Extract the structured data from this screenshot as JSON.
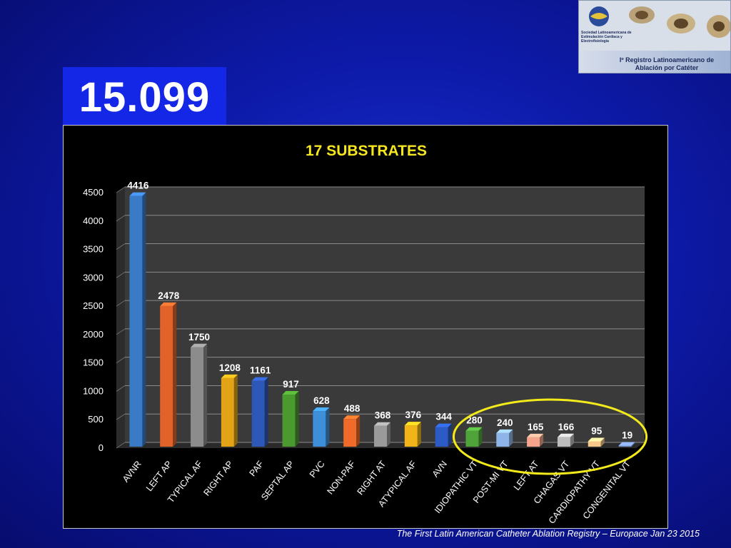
{
  "headline": {
    "total": "15.099"
  },
  "logo": {
    "org": "Sociedad Latinoamericana de Estimulación Cardíaca y Electrofisiología",
    "registry": "Iº Registro Latinoamericano de Ablación por Catéter"
  },
  "footer": {
    "citation": "The First Latin American Catheter Ablation Registry – Europace Jan 23 2015"
  },
  "colors": {
    "background": "#0d1aa8",
    "title": "#f5e61e",
    "highlight_ellipse": "#f2ea1a"
  },
  "chart_data": {
    "type": "bar",
    "title": "17 SUBSTRATES",
    "xlabel": "",
    "ylabel": "",
    "ylim": [
      0,
      4500
    ],
    "yticks": [
      0,
      500,
      1000,
      1500,
      2000,
      2500,
      3000,
      3500,
      4000,
      4500
    ],
    "grid": true,
    "categories": [
      "AVNR",
      "LEFT AP",
      "TYPICAL AF",
      "RIGHT AP",
      "PAF",
      "SEPTAL AP",
      "PVC",
      "NON-PAF",
      "RIGHT AT",
      "ATYPICAL AF",
      "AVN",
      "IDIOPATHIC VT",
      "POST-MI VT",
      "LEFT AT",
      "CHAGAS VT",
      "CARDIOPATHY VT",
      "CONGENITAL VT"
    ],
    "values": [
      4416,
      2478,
      1750,
      1208,
      1161,
      917,
      628,
      488,
      368,
      376,
      344,
      280,
      240,
      165,
      166,
      95,
      19
    ],
    "bar_colors": [
      "#3a7bc8",
      "#e2632a",
      "#8c8c8c",
      "#e3a317",
      "#2e58b8",
      "#4b9a2f",
      "#3c8fd8",
      "#f06a2a",
      "#9a9a9a",
      "#f1b51a",
      "#2c5bc5",
      "#4fa33a",
      "#8eb4e8",
      "#f4a58c",
      "#bdbdbd",
      "#f6c88a",
      "#7a96cf"
    ],
    "highlighted_categories": [
      "IDIOPATHIC VT",
      "POST-MI VT",
      "LEFT AT",
      "CHAGAS VT",
      "CARDIOPATHY VT",
      "CONGENITAL VT"
    ]
  }
}
